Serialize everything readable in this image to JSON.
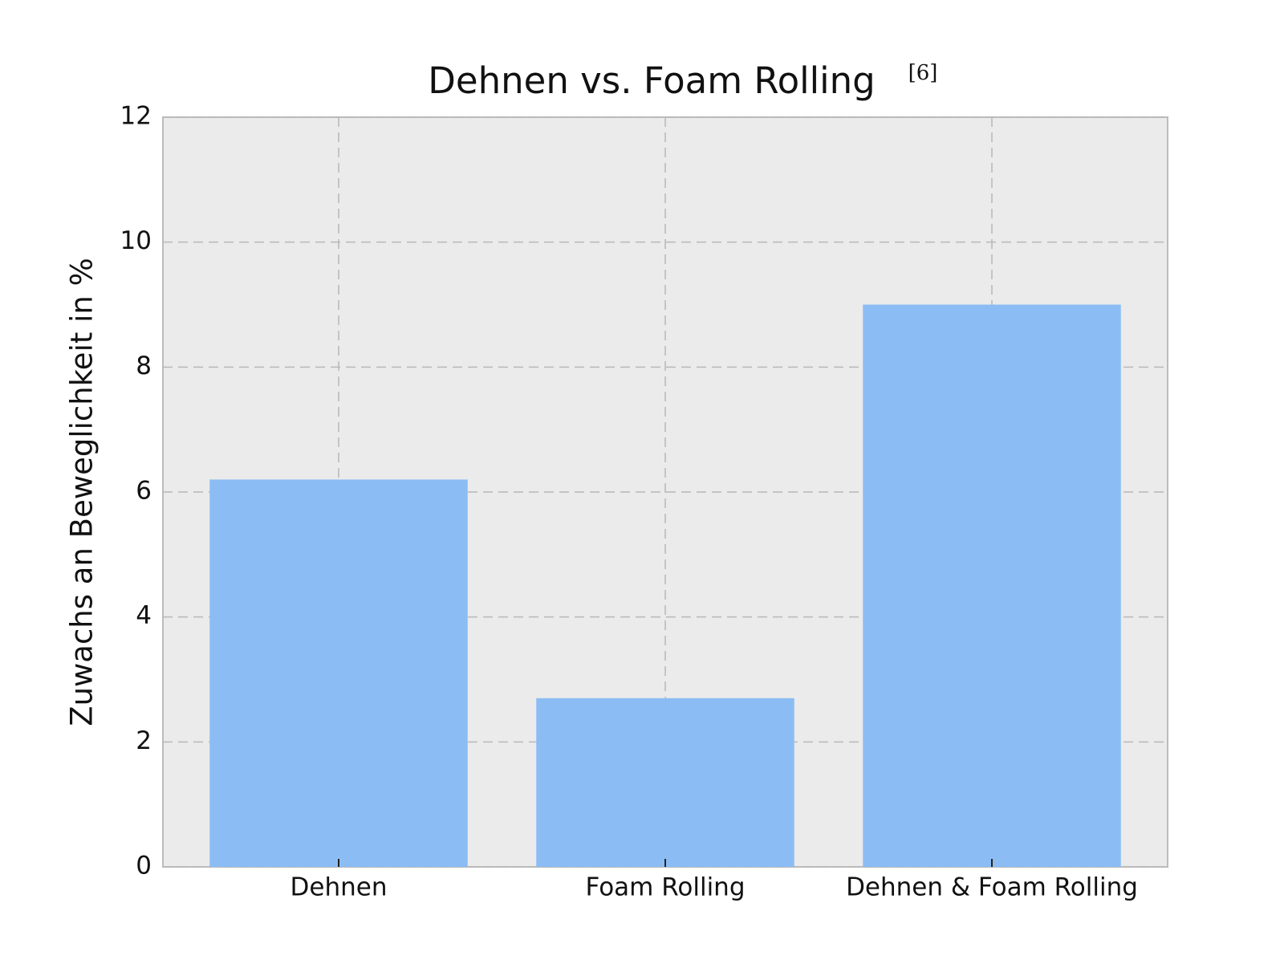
{
  "chart_data": {
    "type": "bar",
    "title": "Dehnen vs. Foam Rolling",
    "title_citation": "[6]",
    "y_label": "Zuwachs an Beweglichkeit in %",
    "categories": [
      "Dehnen",
      "Foam Rolling",
      "Dehnen & Foam Rolling"
    ],
    "values": [
      6.2,
      2.7,
      9.0
    ],
    "color": "#8bbdf4",
    "ylim": [
      0,
      12
    ],
    "yticks": [
      0,
      2,
      4,
      6,
      8,
      10,
      12
    ],
    "grid": true
  }
}
